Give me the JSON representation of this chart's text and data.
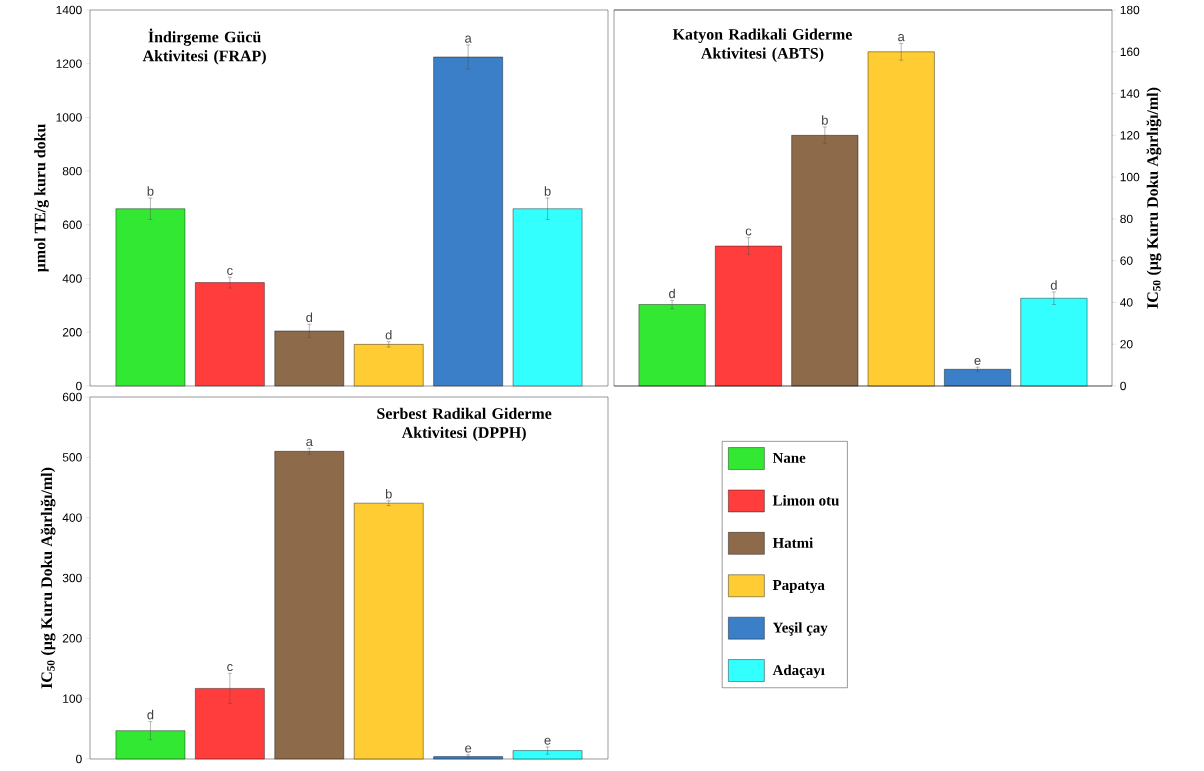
{
  "chart_data": [
    {
      "type": "bar",
      "title": "İndirgeme Gücü Aktivitesi (FRAP)",
      "ylabel": "µmol TE/g kuru doku",
      "categories": [
        null
      ],
      "ylim": [
        0,
        1400
      ],
      "yticks": [
        0,
        200,
        400,
        600,
        800,
        1000,
        1200,
        1400
      ],
      "series": [
        {
          "color": "#33e833",
          "values": [
            660
          ],
          "errors": [
            40
          ],
          "value_labels": [
            "b"
          ]
        },
        {
          "color": "#ff3d3d",
          "values": [
            385
          ],
          "errors": [
            20
          ],
          "value_labels": [
            "c"
          ]
        },
        {
          "color": "#8c6a4a",
          "values": [
            205
          ],
          "errors": [
            25
          ],
          "value_labels": [
            "d"
          ]
        },
        {
          "color": "#ffcc33",
          "values": [
            155
          ],
          "errors": [
            10
          ],
          "value_labels": [
            "d"
          ]
        },
        {
          "color": "#3a7fc8",
          "values": [
            1225
          ],
          "errors": [
            45
          ],
          "value_labels": [
            "a"
          ]
        },
        {
          "color": "#33ffff",
          "values": [
            660
          ],
          "errors": [
            40
          ],
          "value_labels": [
            "b"
          ]
        }
      ]
    },
    {
      "type": "bar",
      "title": "Katyon Radikali Giderme Aktivitesi (ABTS)",
      "ylabel": "IC$_{50}$ (µg Kuru Doku Ağırlığı/ml)",
      "categories": [
        null
      ],
      "ylim": [
        0,
        180
      ],
      "yticks": [
        0,
        20,
        40,
        60,
        80,
        100,
        120,
        140,
        160,
        180
      ],
      "series": [
        {
          "color": "#33e833",
          "values": [
            39
          ],
          "errors": [
            2
          ],
          "value_labels": [
            "d"
          ]
        },
        {
          "color": "#ff3d3d",
          "values": [
            67
          ],
          "errors": [
            4
          ],
          "value_labels": [
            "c"
          ]
        },
        {
          "color": "#8c6a4a",
          "values": [
            120
          ],
          "errors": [
            4
          ],
          "value_labels": [
            "b"
          ]
        },
        {
          "color": "#ffcc33",
          "values": [
            160
          ],
          "errors": [
            4
          ],
          "value_labels": [
            "a"
          ]
        },
        {
          "color": "#3a7fc8",
          "values": [
            8
          ],
          "errors": [
            1
          ],
          "value_labels": [
            "e"
          ]
        },
        {
          "color": "#33ffff",
          "values": [
            42
          ],
          "errors": [
            3
          ],
          "value_labels": [
            "d"
          ]
        }
      ]
    },
    {
      "type": "bar",
      "title": "Serbest Radikal Giderme Aktivitesi (DPPH)",
      "ylabel": "IC$_{50}$ (µg Kuru Doku Ağırlığı/ml)",
      "categories": [
        null
      ],
      "ylim": [
        0,
        600
      ],
      "yticks": [
        0,
        100,
        200,
        300,
        400,
        500,
        600
      ],
      "legend": "right",
      "series": [
        {
          "name": "Nane",
          "color": "#33e833",
          "values": [
            47
          ],
          "errors": [
            15
          ],
          "value_labels": [
            "d"
          ]
        },
        {
          "name": "Limon otu",
          "color": "#ff3d3d",
          "values": [
            117
          ],
          "errors": [
            25
          ],
          "value_labels": [
            "c"
          ]
        },
        {
          "name": "Hatmi",
          "color": "#8c6a4a",
          "values": [
            510
          ],
          "errors": [
            5
          ],
          "value_labels": [
            "a"
          ]
        },
        {
          "name": "Papatya",
          "color": "#ffcc33",
          "values": [
            424
          ],
          "errors": [
            4
          ],
          "value_labels": [
            "b"
          ]
        },
        {
          "name": "Yeşil çay",
          "color": "#3a7fc8",
          "values": [
            4
          ],
          "errors": [
            3
          ],
          "value_labels": [
            "e"
          ]
        },
        {
          "name": "Adaçayı",
          "color": "#33ffff",
          "values": [
            14
          ],
          "errors": [
            6
          ],
          "value_labels": [
            "e"
          ]
        }
      ]
    }
  ]
}
